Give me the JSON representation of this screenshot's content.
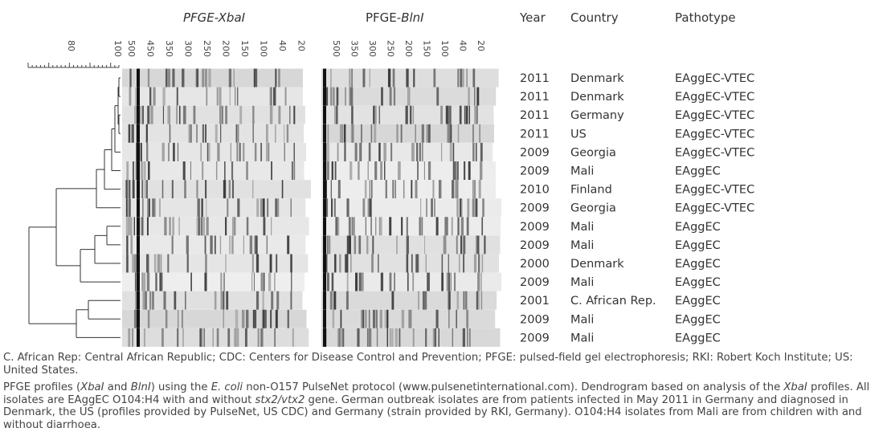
{
  "header": {
    "xbai": [
      "PFGE-",
      "XbaI"
    ],
    "blni": [
      "PFGE-",
      "BlnI"
    ],
    "year": "Year",
    "country": "Country",
    "pathotype": "Pathotype"
  },
  "scale": {
    "labels": [
      "80",
      "100"
    ]
  },
  "xbai_sizes": [
    "500",
    "450",
    "350",
    "300",
    "250",
    "200",
    "150",
    "100",
    "40",
    "20"
  ],
  "blni_sizes": [
    "500",
    "350",
    "300",
    "250",
    "200",
    "150",
    "100",
    "40",
    "20"
  ],
  "rows": [
    [
      "2011",
      "Denmark",
      "EAggEC-VTEC"
    ],
    [
      "2011",
      "Denmark",
      "EAggEC-VTEC"
    ],
    [
      "2011",
      "Germany",
      "EAggEC-VTEC"
    ],
    [
      "2011",
      "US",
      "EAggEC-VTEC"
    ],
    [
      "2009",
      "Georgia",
      "EAggEC-VTEC"
    ],
    [
      "2009",
      "Mali",
      "EAggEC"
    ],
    [
      "2010",
      "Finland",
      "EAggEC-VTEC"
    ],
    [
      "2009",
      "Georgia",
      "EAggEC-VTEC"
    ],
    [
      "2009",
      "Mali",
      "EAggEC"
    ],
    [
      "2009",
      "Mali",
      "EAggEC"
    ],
    [
      "2000",
      "Denmark",
      "EAggEC"
    ],
    [
      "2009",
      "Mali",
      "EAggEC"
    ],
    [
      "2001",
      "C. African Rep.",
      "EAggEC"
    ],
    [
      "2009",
      "Mali",
      "EAggEC"
    ],
    [
      "2009",
      "Mali",
      "EAggEC"
    ]
  ],
  "footnotes": [
    [
      "C. African Rep: Central African Republic; CDC: Centers for Disease Control and Prevention; PFGE: pulsed-field gel electrophoresis; RKI: Robert Koch Institute; US: United States."
    ],
    [
      "PFGE profiles (",
      "XbaI",
      " and ",
      "BlnI",
      ") using the ",
      "E. coli",
      " non-O157 PulseNet protocol (www.pulsenetinternational.com). Dendrogram based on analysis of the ",
      "XbaI",
      " profiles. All isolates are EAggEC O104:H4 with and without ",
      "stx2/vtx2",
      " gene. German outbreak isolates are from patients infected in May 2011 in Germany and diagnosed in Denmark, the US (profiles provided by PulseNet, US CDC) and Germany (strain provided by RKI, Germany). O104:H4 isolates from Mali are from children with and without diarrhoea."
    ]
  ]
}
